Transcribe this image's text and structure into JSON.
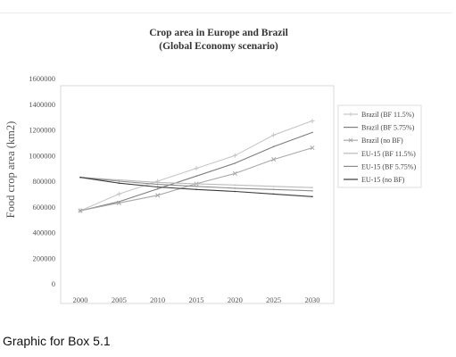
{
  "caption": "Graphic for Box 5.1",
  "chart_data": {
    "type": "line",
    "title": "Crop area in Europe and Brazil",
    "subtitle": "(Global Economy scenario)",
    "xlabel": "",
    "ylabel": "Food crop area (km2)",
    "x": [
      2000,
      2005,
      2010,
      2015,
      2020,
      2025,
      2030
    ],
    "x_tick_labels": [
      "2000",
      "2005",
      "2010",
      "2015",
      "2020",
      "2025",
      "2030"
    ],
    "ylim": [
      0,
      1600000
    ],
    "y_ticks": [
      0,
      200000,
      400000,
      600000,
      800000,
      1000000,
      1200000,
      1400000,
      1600000
    ],
    "y_tick_labels": [
      "0",
      "200000",
      "400000",
      "600000",
      "800000",
      "1000000",
      "1200000",
      "1400000",
      "1600000"
    ],
    "grid": false,
    "legend_position": "right",
    "series": [
      {
        "name": "Brazil  (BF 11.5%)",
        "values": [
          570000,
          700000,
          800000,
          900000,
          1000000,
          1160000,
          1270000
        ],
        "color": "#c6c6c6",
        "marker": "plus"
      },
      {
        "name": "Brazil  (BF 5.75%)",
        "values": [
          570000,
          640000,
          740000,
          840000,
          940000,
          1070000,
          1180000
        ],
        "color": "#7d7d7d",
        "marker": "none"
      },
      {
        "name": "Brazil (no BF)",
        "values": [
          570000,
          630000,
          690000,
          780000,
          860000,
          970000,
          1060000
        ],
        "color": "#a8a8a8",
        "marker": "x"
      },
      {
        "name": "EU-15 (BF 11.5%)",
        "values": [
          830000,
          810000,
          790000,
          780000,
          770000,
          760000,
          750000
        ],
        "color": "#bbbbbb",
        "marker": "none"
      },
      {
        "name": "EU-15 (BF 5.75%)",
        "values": [
          830000,
          800000,
          775000,
          760000,
          745000,
          735000,
          725000
        ],
        "color": "#8d8d8d",
        "marker": "none"
      },
      {
        "name": "EU-15 (no BF)",
        "values": [
          830000,
          785000,
          755000,
          735000,
          720000,
          700000,
          680000
        ],
        "color": "#3a3a3a",
        "marker": "none"
      }
    ]
  }
}
